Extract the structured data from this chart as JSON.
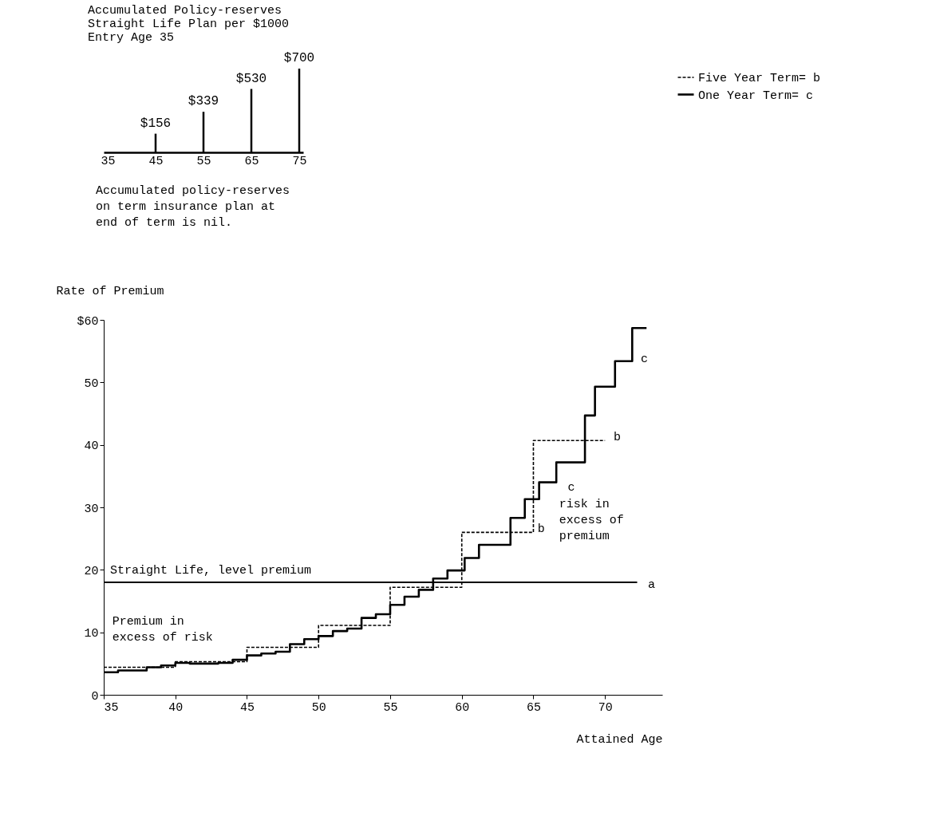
{
  "chart_data": [
    {
      "type": "step",
      "xlabel": "Attained Age",
      "ylabel": "Rate of Premium",
      "xlim": [
        35,
        74
      ],
      "ylim": [
        0,
        60
      ],
      "xticks": [
        35,
        40,
        45,
        50,
        55,
        60,
        65,
        70
      ],
      "yticks": [
        0,
        10,
        20,
        30,
        40,
        50,
        {
          "value": 60,
          "label": "$60"
        }
      ],
      "grid": false,
      "legend": "top right",
      "series": [
        {
          "name": "Five Year Term= b",
          "color": "#000000",
          "line_style": "dashed",
          "x": [
            35,
            40,
            45,
            50,
            55,
            60,
            65,
            70
          ],
          "values": [
            4.4,
            5.3,
            7.6,
            11.1,
            17.2,
            26.0,
            40.7,
            40.7
          ]
        },
        {
          "name": "One Year Term= c",
          "color": "#000000",
          "line_style": "solid",
          "x": [
            35,
            36,
            37,
            38,
            39,
            40,
            41,
            42,
            43,
            44,
            45,
            46,
            47,
            48,
            49,
            50,
            51,
            52,
            53,
            54,
            55,
            56,
            57,
            58,
            59,
            60.2,
            61.2,
            63.4,
            64.4,
            65.4,
            66.6,
            68.6,
            69.3,
            70.7,
            71.9,
            72.9
          ],
          "values": [
            3.6,
            3.9,
            3.9,
            4.4,
            4.7,
            5.1,
            5.0,
            5.0,
            5.1,
            5.6,
            6.3,
            6.6,
            6.9,
            8.1,
            8.9,
            9.4,
            10.2,
            10.6,
            12.3,
            12.9,
            14.4,
            15.7,
            16.8,
            18.6,
            19.9,
            21.9,
            24.0,
            28.3,
            31.3,
            34.0,
            37.2,
            44.7,
            49.3,
            53.4,
            58.7,
            58.7
          ]
        }
      ],
      "ref_lines": [
        {
          "axis": "y",
          "value": 18,
          "label": "Straight Life, level premium"
        }
      ],
      "annotations": [
        "a",
        "b",
        "c",
        "b",
        "c",
        "Premium in excess of risk",
        "risk in excess of premium"
      ]
    },
    {
      "type": "bar",
      "title": "Accumulated Policy-reserves Straight Life Plan per $1000 Entry Age 35",
      "x": [
        45,
        55,
        65,
        75
      ],
      "values": [
        156,
        339,
        530,
        700
      ],
      "value_labels": [
        "$156",
        "$339",
        "$530",
        "$700"
      ],
      "color": "#000000",
      "xlim": [
        35,
        75
      ],
      "xticks": [
        35,
        45,
        55,
        65,
        75
      ],
      "tick_labels": "x",
      "annotations": [
        "Accumulated policy-reserves on term insurance plan at end of term is nil."
      ]
    }
  ]
}
